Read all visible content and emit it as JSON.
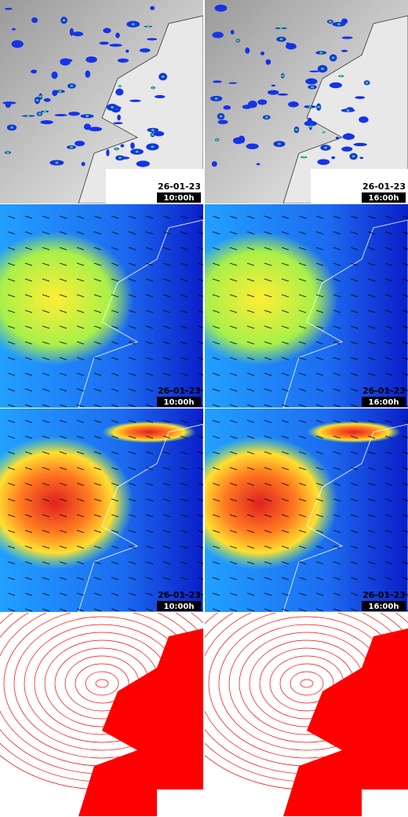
{
  "panels": [
    {
      "date": "26-01-23",
      "time": "10:00h"
    },
    {
      "date": "26-01-23",
      "time": "16:00h"
    },
    {
      "date": "26-01-23",
      "time": "10:00h"
    },
    {
      "date": "26-01-23",
      "time": "16:00h"
    },
    {
      "date": "26-01-23",
      "time": "10:00h"
    },
    {
      "date": "26-01-23",
      "time": "16:00h"
    }
  ]
}
